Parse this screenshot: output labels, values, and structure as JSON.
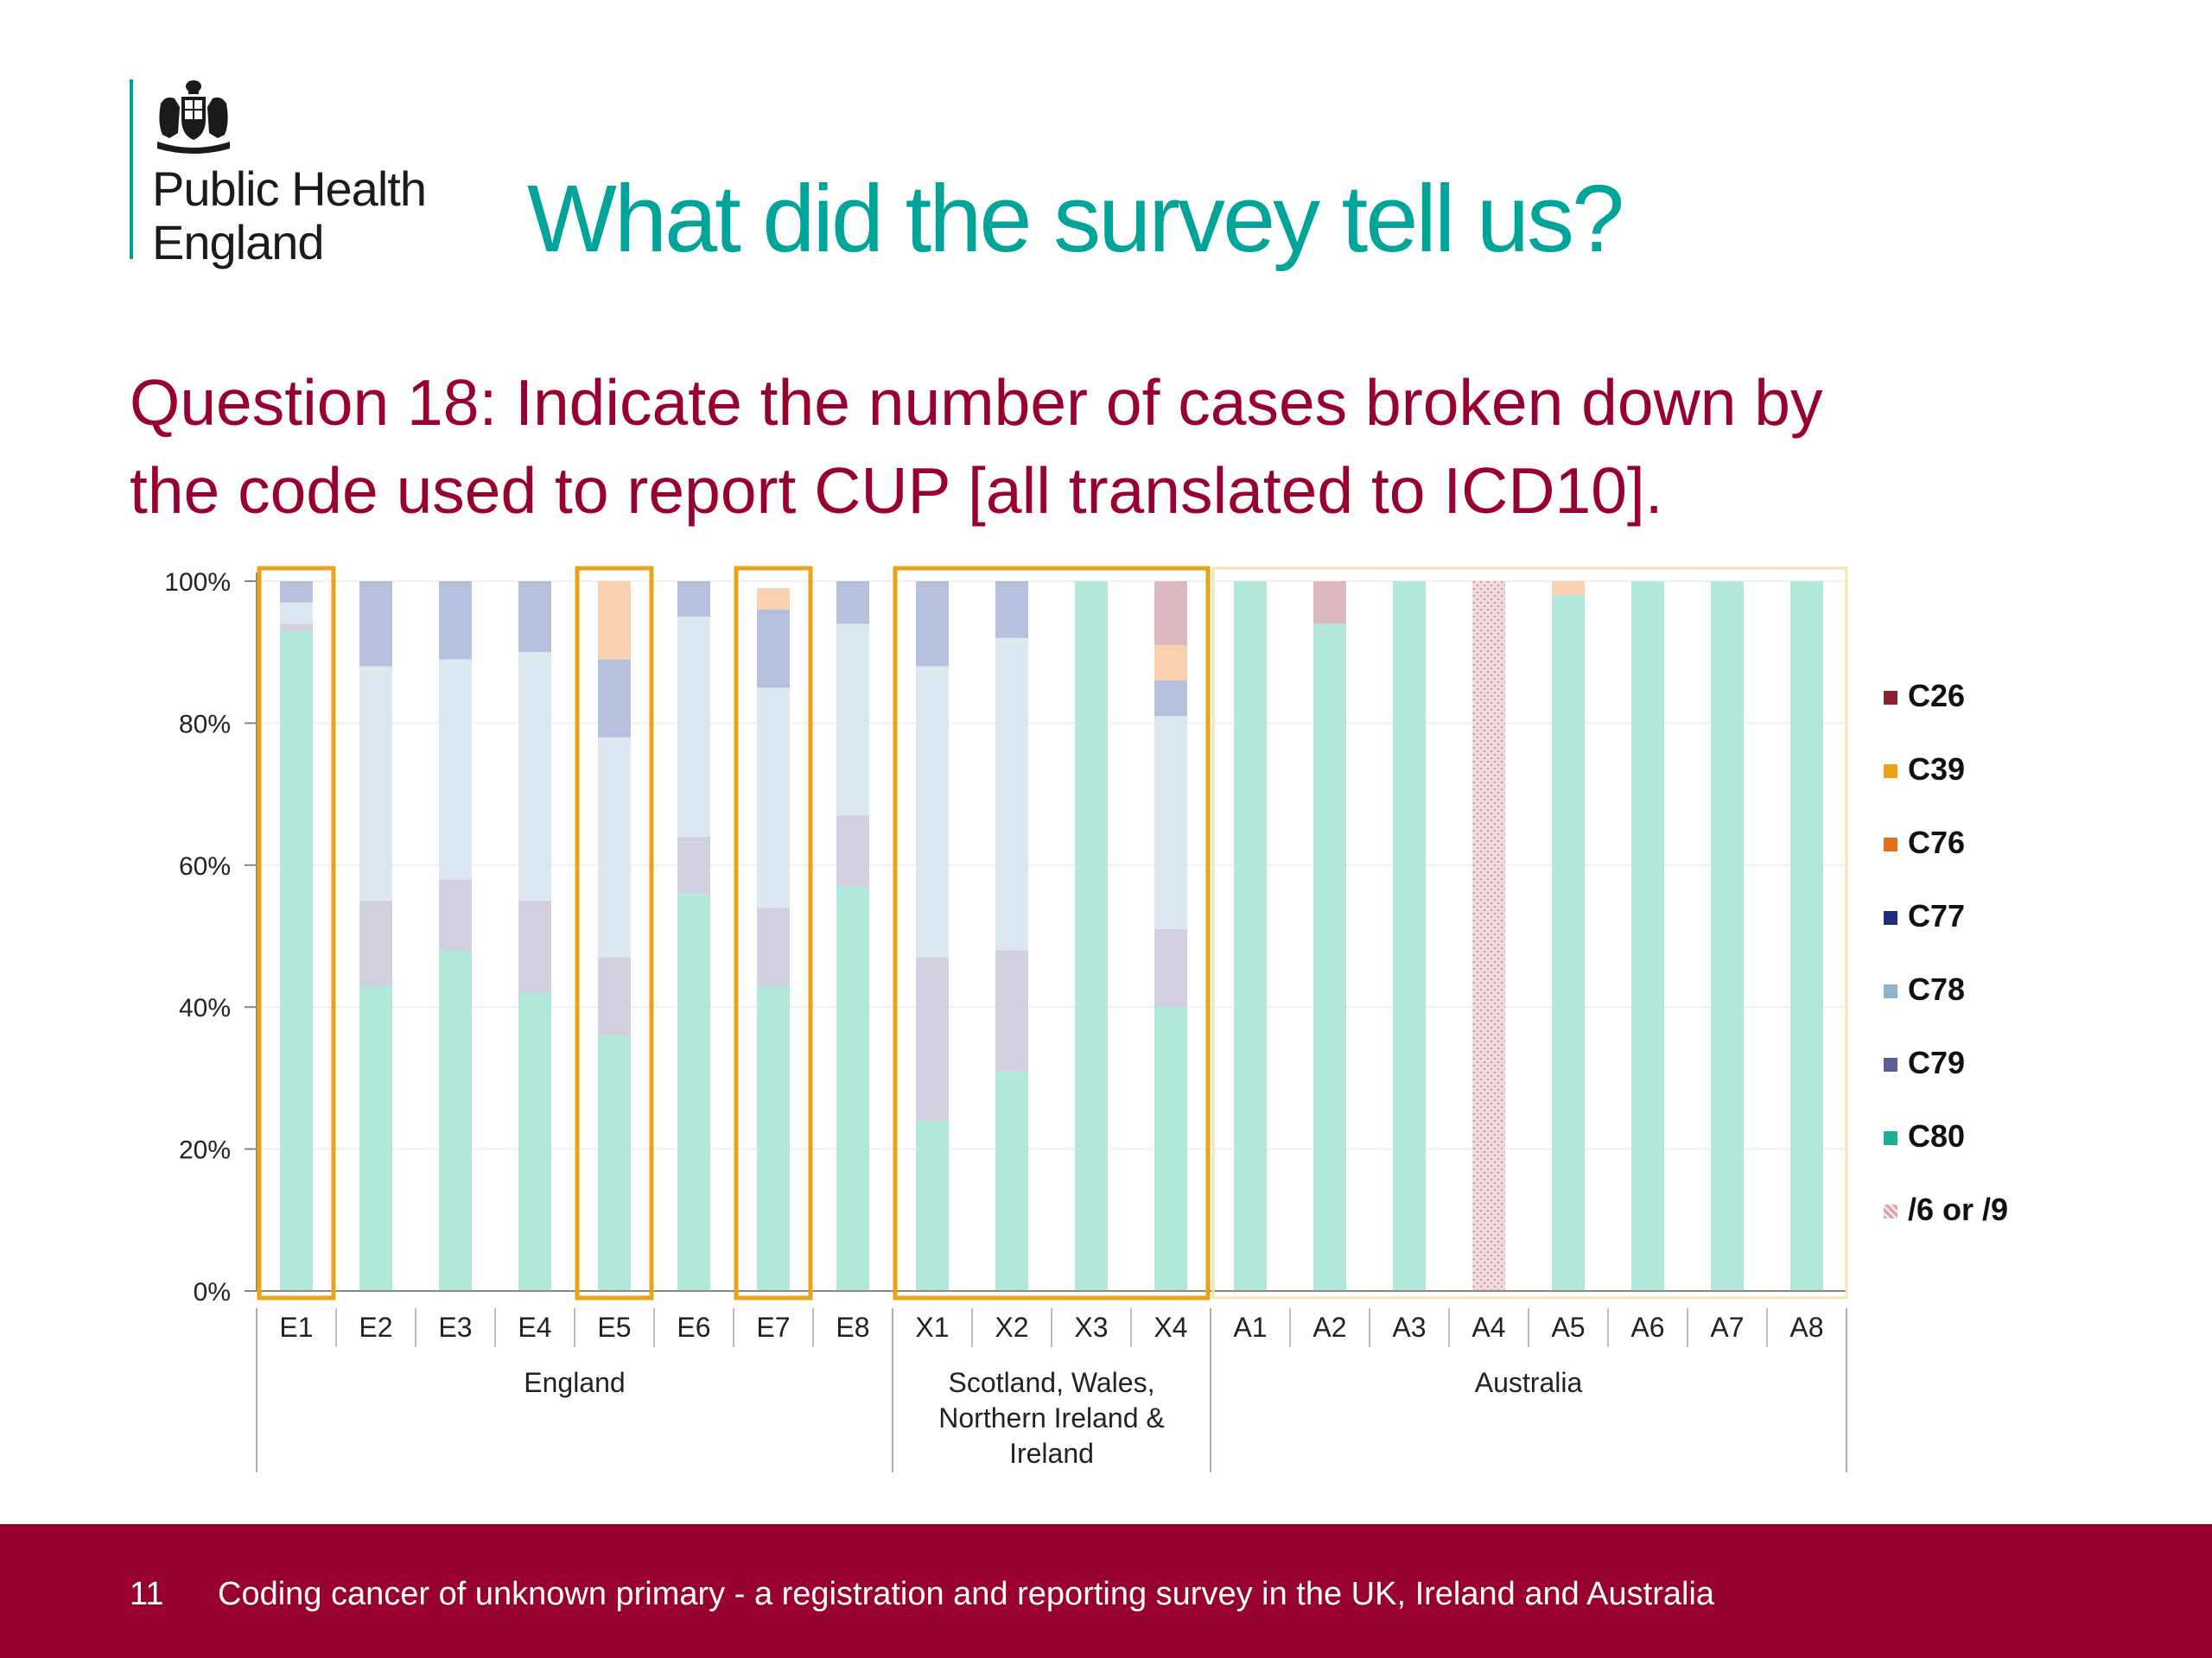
{
  "header": {
    "org_line1": "Public Health",
    "org_line2": "England",
    "title": "What did the survey tell us?",
    "question_line1": "Question 18: Indicate the number of cases broken down by",
    "question_line2": "the code used to report CUP [all translated to ICD10]."
  },
  "footer": {
    "page_number": "11",
    "text": "Coding cancer of unknown primary - a registration and reporting survey in the UK, Ireland and Australia"
  },
  "colors": {
    "accent": "#00a499",
    "brand": "#98002e",
    "highlight_box": "#e8a317"
  },
  "chart_data": {
    "type": "bar",
    "stacked": true,
    "title": "",
    "xlabel": "",
    "ylabel": "",
    "ylim": [
      0,
      100
    ],
    "y_ticks": [
      "0%",
      "20%",
      "40%",
      "60%",
      "80%",
      "100%"
    ],
    "categories": [
      "E1",
      "E2",
      "E3",
      "E4",
      "E5",
      "E6",
      "E7",
      "E8",
      "X1",
      "X2",
      "X3",
      "X4",
      "A1",
      "A2",
      "A3",
      "A4",
      "A5",
      "A6",
      "A7",
      "A8"
    ],
    "groups": [
      {
        "name": "England",
        "lines": [
          "England"
        ],
        "members": [
          "E1",
          "E2",
          "E3",
          "E4",
          "E5",
          "E6",
          "E7",
          "E8"
        ]
      },
      {
        "name": "Scotland, Wales, Northern Ireland & Ireland",
        "lines": [
          "Scotland, Wales,",
          "Northern Ireland &",
          "Ireland"
        ],
        "members": [
          "X1",
          "X2",
          "X3",
          "X4"
        ]
      },
      {
        "name": "Australia",
        "lines": [
          "Australia"
        ],
        "members": [
          "A1",
          "A2",
          "A3",
          "A4",
          "A5",
          "A6",
          "A7",
          "A8"
        ]
      }
    ],
    "highlighted": [
      [
        "E1"
      ],
      [
        "E5"
      ],
      [
        "E7"
      ],
      [
        "X1",
        "X2",
        "X3",
        "X4"
      ]
    ],
    "legend": [
      {
        "name": "C26",
        "color": "#8b2232"
      },
      {
        "name": "C39",
        "color": "#e8a317"
      },
      {
        "name": "C76",
        "color": "#e07020"
      },
      {
        "name": "C77",
        "color": "#1f2f7a"
      },
      {
        "name": "C78",
        "color": "#8fb3c9"
      },
      {
        "name": "C79",
        "color": "#5a5e96"
      },
      {
        "name": "C80",
        "color": "#19b394"
      },
      {
        "name": "/6 or /9",
        "color": "#d9a0a6",
        "pattern": true
      }
    ],
    "series": [
      {
        "name": "C80",
        "color": "#b2e8da",
        "values": [
          93,
          43,
          48,
          42,
          36,
          56,
          43,
          57,
          24,
          31,
          100,
          40,
          100,
          94,
          100,
          0,
          98,
          100,
          100,
          100
        ]
      },
      {
        "name": "C79",
        "color": "#d2d0e0",
        "values": [
          1,
          12,
          10,
          13,
          11,
          8,
          11,
          10,
          23,
          17,
          0,
          11,
          0,
          0,
          0,
          0,
          0,
          0,
          0,
          0
        ]
      },
      {
        "name": "C78",
        "color": "#dbe8ef",
        "values": [
          3,
          33,
          31,
          35,
          31,
          31,
          31,
          27,
          41,
          44,
          0,
          30,
          0,
          0,
          0,
          0,
          0,
          0,
          0,
          0
        ]
      },
      {
        "name": "C77",
        "color": "#b5c1dc",
        "values": [
          3,
          12,
          11,
          10,
          11,
          5,
          11,
          6,
          12,
          8,
          0,
          5,
          0,
          0,
          0,
          0,
          0,
          0,
          0,
          0
        ]
      },
      {
        "name": "C39",
        "color": "#f9d1b1",
        "values": [
          0,
          0,
          0,
          0,
          11,
          0,
          3,
          0,
          0,
          0,
          0,
          5,
          0,
          0,
          0,
          0,
          2,
          0,
          0,
          0
        ]
      },
      {
        "name": "/6 or /9",
        "color": "#dcb8c0",
        "values": [
          0,
          0,
          0,
          0,
          0,
          0,
          0,
          0,
          0,
          0,
          0,
          9,
          0,
          6,
          0,
          100,
          0,
          0,
          0,
          0
        ]
      }
    ]
  }
}
